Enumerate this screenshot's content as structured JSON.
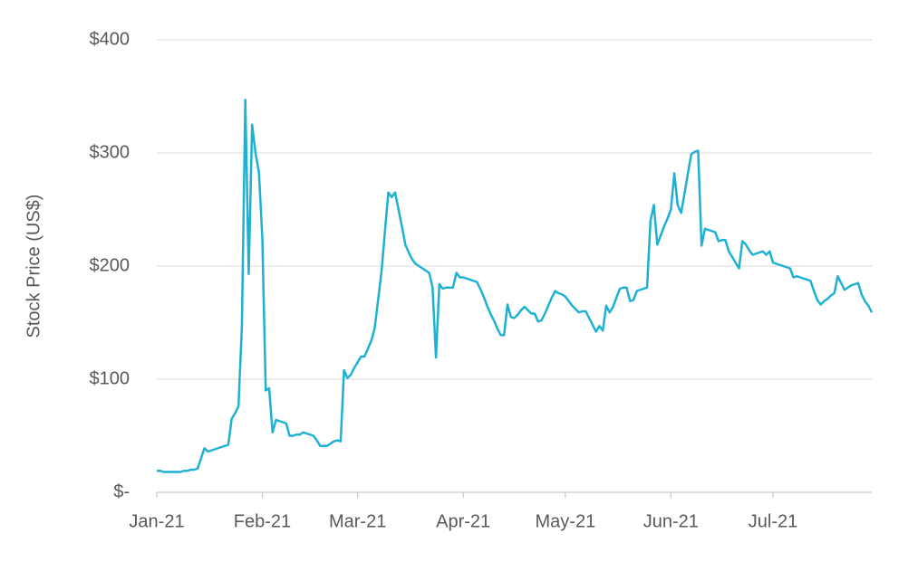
{
  "chart_data": {
    "type": "line",
    "y_label": "Stock Price (US$)",
    "categories": [
      "Jan-21",
      null,
      null,
      null,
      null,
      null,
      null,
      null,
      null,
      null,
      null,
      null,
      null,
      null,
      null,
      null,
      null,
      null,
      null,
      null,
      null,
      null,
      null,
      null,
      null,
      null,
      null,
      null,
      null,
      null,
      null,
      "Feb-21",
      null,
      null,
      null,
      null,
      null,
      null,
      null,
      null,
      null,
      null,
      null,
      null,
      null,
      null,
      null,
      null,
      null,
      null,
      null,
      null,
      null,
      null,
      null,
      null,
      null,
      null,
      null,
      "Mar-21",
      null,
      null,
      null,
      null,
      null,
      null,
      null,
      null,
      null,
      null,
      null,
      null,
      null,
      null,
      null,
      null,
      null,
      null,
      null,
      null,
      null,
      null,
      null,
      null,
      null,
      null,
      null,
      null,
      null,
      null,
      "Apr-21",
      null,
      null,
      null,
      null,
      null,
      null,
      null,
      null,
      null,
      null,
      null,
      null,
      null,
      null,
      null,
      null,
      null,
      null,
      null,
      null,
      null,
      null,
      null,
      null,
      null,
      null,
      null,
      null,
      null,
      "May-21",
      null,
      null,
      null,
      null,
      null,
      null,
      null,
      null,
      null,
      null,
      null,
      null,
      null,
      null,
      null,
      null,
      null,
      null,
      null,
      null,
      null,
      null,
      null,
      null,
      null,
      null,
      null,
      null,
      null,
      null,
      "Jun-21",
      null,
      null,
      null,
      null,
      null,
      null,
      null,
      null,
      null,
      null,
      null,
      null,
      null,
      null,
      null,
      null,
      null,
      null,
      null,
      null,
      null,
      null,
      null,
      null,
      null,
      null,
      null,
      null,
      null,
      "Jul-21",
      null,
      null,
      null,
      null,
      null,
      null,
      null,
      null,
      null,
      null,
      null,
      null,
      null,
      null,
      null,
      null,
      null,
      null,
      null,
      null,
      null,
      null,
      null,
      null,
      null,
      null,
      null,
      null,
      null
    ],
    "values": [
      19,
      19,
      18,
      18,
      18,
      18,
      18,
      18,
      19,
      19,
      20,
      20,
      21,
      30,
      39,
      36,
      37,
      38,
      39,
      40,
      41,
      42,
      65,
      70,
      76,
      147,
      347,
      193,
      325,
      300,
      283,
      225,
      90,
      92,
      53,
      64,
      63,
      62,
      61,
      50,
      50,
      51,
      51,
      53,
      52,
      51,
      50,
      46,
      41,
      41,
      41,
      43,
      45,
      46,
      45,
      108,
      101,
      104,
      110,
      115,
      120,
      120,
      127,
      134,
      145,
      170,
      195,
      230,
      265,
      261,
      265,
      250,
      235,
      219,
      212,
      206,
      202,
      200,
      198,
      196,
      194,
      181,
      119,
      184,
      180,
      181,
      181,
      181,
      194,
      190,
      190,
      189,
      188,
      187,
      186,
      180,
      173,
      165,
      158,
      152,
      145,
      139,
      139,
      166,
      155,
      154,
      157,
      161,
      164,
      161,
      158,
      158,
      151,
      152,
      158,
      165,
      172,
      178,
      176,
      175,
      173,
      169,
      165,
      162,
      159,
      160,
      160,
      154,
      148,
      142,
      147,
      143,
      165,
      159,
      164,
      172,
      180,
      181,
      181,
      169,
      170,
      178,
      179,
      180,
      181,
      240,
      254,
      219,
      227,
      235,
      242,
      250,
      282,
      254,
      247,
      264,
      282,
      299,
      301,
      302,
      218,
      233,
      232,
      231,
      230,
      222,
      223,
      223,
      213,
      208,
      203,
      198,
      222,
      219,
      214,
      210,
      211,
      212,
      213,
      210,
      213,
      203,
      202,
      201,
      200,
      199,
      198,
      190,
      191,
      190,
      189,
      188,
      187,
      178,
      170,
      166,
      169,
      171,
      174,
      176,
      191,
      185,
      179,
      181,
      183,
      184,
      185,
      175,
      169,
      165,
      159
    ],
    "color": "#1eb1d3",
    "ylim": [
      0,
      400
    ],
    "yticks": [
      {
        "value": 0,
        "label": "$-"
      },
      {
        "value": 100,
        "label": "$100"
      },
      {
        "value": 200,
        "label": "$200"
      },
      {
        "value": 300,
        "label": "$300"
      },
      {
        "value": 400,
        "label": "$400"
      }
    ],
    "grid": true
  }
}
